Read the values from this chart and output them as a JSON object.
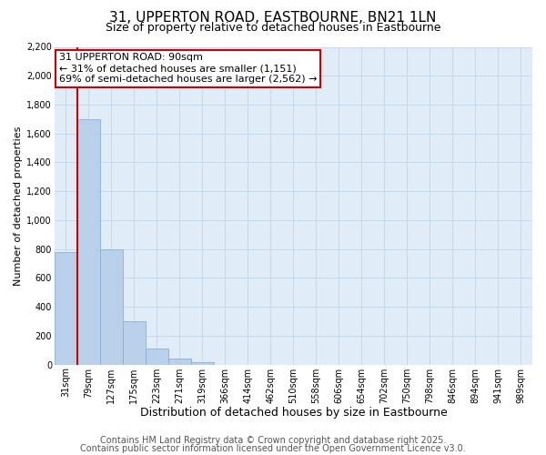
{
  "title": "31, UPPERTON ROAD, EASTBOURNE, BN21 1LN",
  "subtitle": "Size of property relative to detached houses in Eastbourne",
  "xlabel": "Distribution of detached houses by size in Eastbourne",
  "ylabel": "Number of detached properties",
  "bar_labels": [
    "31sqm",
    "79sqm",
    "127sqm",
    "175sqm",
    "223sqm",
    "271sqm",
    "319sqm",
    "366sqm",
    "414sqm",
    "462sqm",
    "510sqm",
    "558sqm",
    "606sqm",
    "654sqm",
    "702sqm",
    "750sqm",
    "798sqm",
    "846sqm",
    "894sqm",
    "941sqm",
    "989sqm"
  ],
  "bar_values": [
    780,
    1700,
    800,
    300,
    110,
    40,
    20,
    0,
    0,
    0,
    0,
    0,
    0,
    0,
    0,
    0,
    0,
    0,
    0,
    0,
    0
  ],
  "bar_color": "#b8d0ea",
  "bar_edgecolor": "#8ab0d0",
  "property_line_color": "#cc0000",
  "annotation_box_text": "31 UPPERTON ROAD: 90sqm\n← 31% of detached houses are smaller (1,151)\n69% of semi-detached houses are larger (2,562) →",
  "annotation_box_color": "#cc0000",
  "ylim": [
    0,
    2200
  ],
  "yticks": [
    0,
    200,
    400,
    600,
    800,
    1000,
    1200,
    1400,
    1600,
    1800,
    2000,
    2200
  ],
  "grid_color": "#c8d8e8",
  "background_color": "#e0ecf8",
  "footer_line1": "Contains HM Land Registry data © Crown copyright and database right 2025.",
  "footer_line2": "Contains public sector information licensed under the Open Government Licence v3.0.",
  "title_fontsize": 11,
  "subtitle_fontsize": 9,
  "xlabel_fontsize": 9,
  "ylabel_fontsize": 8,
  "tick_fontsize": 7,
  "annot_fontsize": 8,
  "footer_fontsize": 7
}
